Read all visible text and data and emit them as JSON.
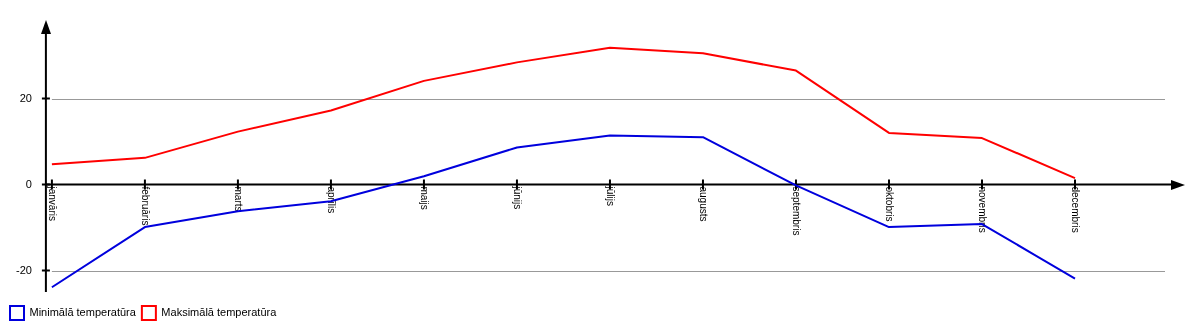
{
  "chart_data": {
    "type": "line",
    "categories": [
      "janvāris",
      "februāris",
      "marts",
      "aprīlis",
      "maijs",
      "jūnijs",
      "jūlijs",
      "augusts",
      "septembris",
      "oktobris",
      "novembris",
      "decembris"
    ],
    "series": [
      {
        "name": "Minimālā temperatūra",
        "color": "#0000dd",
        "values": [
          -23.9,
          -9.9,
          -6.2,
          -3.9,
          1.9,
          8.6,
          11.4,
          11.0,
          -0.2,
          -9.9,
          -9.2,
          -21.9
        ]
      },
      {
        "name": "Maksimālā temperatūra",
        "color": "#ff0000",
        "values": [
          4.7,
          6.2,
          12.3,
          17.2,
          24.1,
          28.4,
          31.8,
          30.5,
          26.5,
          12.0,
          10.8,
          1.5
        ]
      }
    ],
    "ylim": [
      -25,
      35
    ],
    "yticks": [
      -20,
      0,
      20
    ],
    "grid": "y",
    "legend": "bottom left",
    "marker": "none",
    "line_style": "solid"
  }
}
